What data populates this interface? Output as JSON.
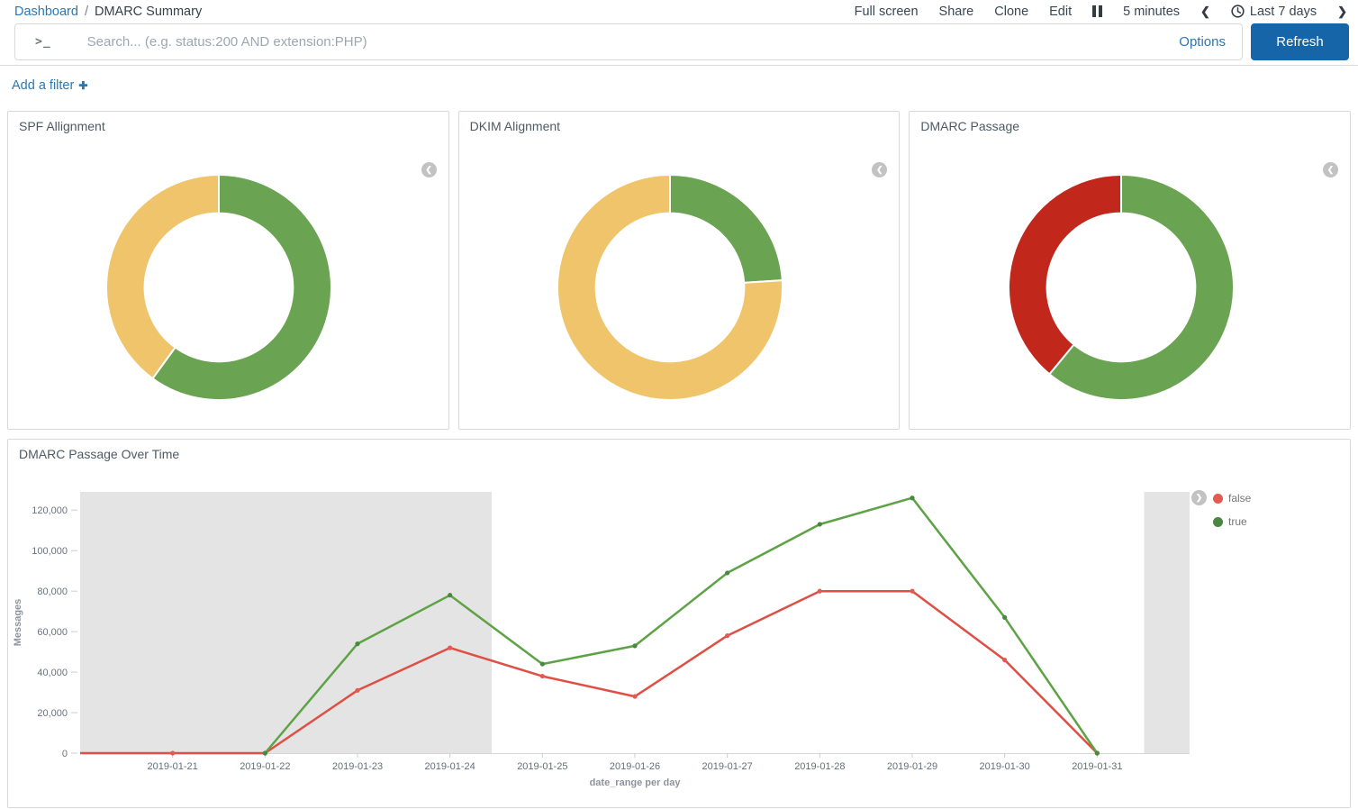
{
  "breadcrumb": {
    "dashboard": "Dashboard",
    "separator": "/",
    "page": "DMARC Summary"
  },
  "top_menu": {
    "items": [
      "Full screen",
      "Share",
      "Clone",
      "Edit"
    ],
    "refresh_interval": "5 minutes",
    "time_range": "Last 7 days"
  },
  "query_bar": {
    "prompt_icon": "terminal-prompt-icon",
    "placeholder": "Search... (e.g. status:200 AND extension:PHP)",
    "options": "Options",
    "refresh": "Refresh"
  },
  "filter_bar": {
    "add_filter": "Add a filter"
  },
  "panels": {
    "spf": {
      "title": "SPF Allignment"
    },
    "dkim": {
      "title": "DKIM Alignment"
    },
    "dmarc": {
      "title": "DMARC Passage"
    },
    "over_time": {
      "title": "DMARC Passage Over Time"
    }
  },
  "colors": {
    "link": "#2978B5",
    "primary_button": "#1565A8",
    "donut_green": "#6AA351",
    "donut_yellow": "#EFC46A",
    "donut_red": "#C1271B",
    "line_true": "#5DA345",
    "line_false": "#DE4F45",
    "endzone_gray": "#E4E4E4",
    "panel_border": "#D8D8D8"
  },
  "chart_data": [
    {
      "type": "pie",
      "donut": true,
      "title": "SPF Allignment",
      "legend_collapsed": true,
      "segments": [
        {
          "name": "green",
          "value": 60,
          "color": "#6AA351"
        },
        {
          "name": "yellow",
          "value": 40,
          "color": "#EFC46A"
        }
      ]
    },
    {
      "type": "pie",
      "donut": true,
      "title": "DKIM Alignment",
      "legend_collapsed": true,
      "segments": [
        {
          "name": "green",
          "value": 24,
          "color": "#6AA351"
        },
        {
          "name": "yellow",
          "value": 76,
          "color": "#EFC46A"
        }
      ]
    },
    {
      "type": "pie",
      "donut": true,
      "title": "DMARC Passage",
      "legend_collapsed": true,
      "segments": [
        {
          "name": "green",
          "value": 61,
          "color": "#6AA351"
        },
        {
          "name": "red",
          "value": 39,
          "color": "#C1271B"
        }
      ]
    },
    {
      "type": "line",
      "title": "DMARC Passage Over Time",
      "x": [
        "2019-01-21",
        "2019-01-22",
        "2019-01-23",
        "2019-01-24",
        "2019-01-25",
        "2019-01-26",
        "2019-01-27",
        "2019-01-28",
        "2019-01-29",
        "2019-01-30",
        "2019-01-31"
      ],
      "series": [
        {
          "name": "false",
          "color": "#DE4F45",
          "dot_color": "#E25B50",
          "values": [
            0,
            0,
            31000,
            52000,
            38000,
            28000,
            58000,
            80000,
            80000,
            46000,
            0
          ],
          "extends_to_left_edge": true
        },
        {
          "name": "true",
          "color": "#5DA345",
          "dot_color": "#4A8741",
          "values": [
            null,
            0,
            54000,
            78000,
            44000,
            53000,
            89000,
            113000,
            126000,
            67000,
            0
          ],
          "extends_to_left_edge": false
        }
      ],
      "xlabel": "date_range per day",
      "ylabel": "Messages",
      "ylim": [
        0,
        129000
      ],
      "yticks": [
        0,
        20000,
        40000,
        60000,
        80000,
        100000,
        120000
      ],
      "grid": false,
      "legend_position": "right",
      "endzones": {
        "left_fraction": 0.371,
        "right_fraction": 0.959
      }
    }
  ]
}
